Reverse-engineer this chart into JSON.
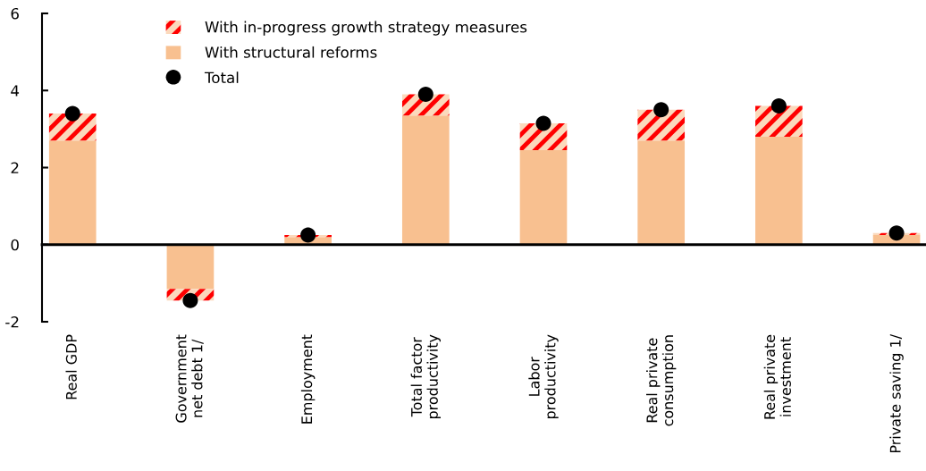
{
  "chart_data": {
    "type": "bar",
    "stacked": true,
    "categories": [
      "Real GDP",
      "Government\nnet debt 1/",
      "Employment",
      "Total factor\nproductivity",
      "Labor\nproductivity",
      "Real private\nconsumption",
      "Real private\ninvestment",
      "Private saving 1/"
    ],
    "series": [
      {
        "name": "With structural reforms",
        "color": "#f8c090",
        "values": [
          2.7,
          -1.15,
          0.2,
          3.35,
          2.45,
          2.7,
          2.8,
          0.25
        ]
      },
      {
        "name": "With in-progress growth strategy measures",
        "color": "#ff0000",
        "values": [
          0.7,
          -0.3,
          0.05,
          0.55,
          0.7,
          0.8,
          0.8,
          0.05
        ]
      },
      {
        "name": "Total",
        "type": "scatter",
        "color": "#000000",
        "values": [
          3.4,
          -1.45,
          0.25,
          3.9,
          3.15,
          3.5,
          3.6,
          0.3
        ]
      }
    ],
    "ylim": [
      -2,
      6
    ],
    "yticks": [
      -2,
      0,
      2,
      4,
      6
    ],
    "legend": "top",
    "marker": "circle"
  }
}
